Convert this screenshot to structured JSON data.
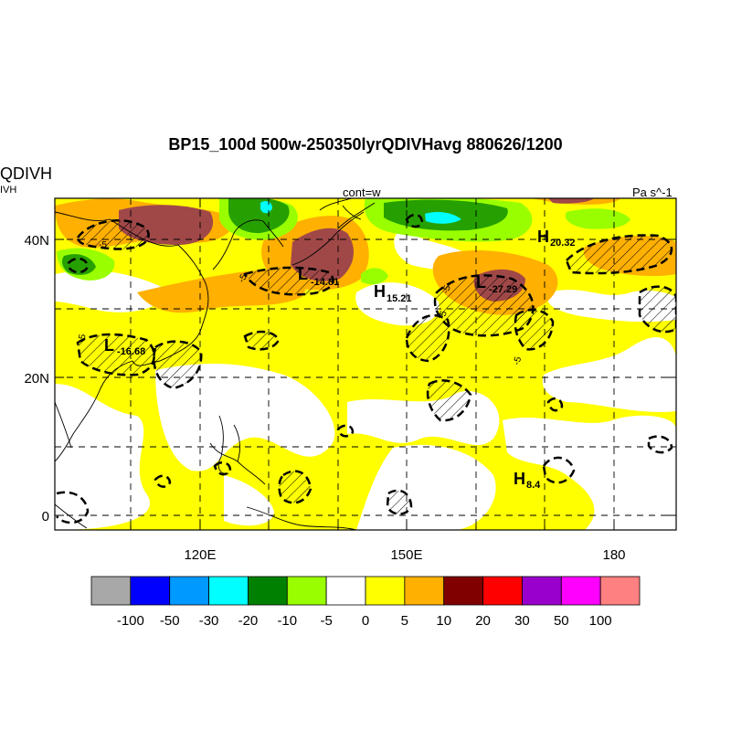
{
  "title": "BP15_100d 500w-250350lyrQDIVHavg  880626/1200",
  "variable": {
    "name": "QDIVH",
    "short": "IVH"
  },
  "annotations": {
    "contour": "cont=w",
    "units": "Pa s^-1"
  },
  "axes": {
    "lat_labels": [
      "40N",
      "20N",
      "0"
    ],
    "lon_labels": [
      "120E",
      "150E",
      "180"
    ]
  },
  "pressure_centers": [
    {
      "type": "L",
      "value": "-16.68"
    },
    {
      "type": "L",
      "value": "-14.81"
    },
    {
      "type": "H",
      "value": "15.21"
    },
    {
      "type": "L",
      "value": "-27.29"
    },
    {
      "type": "H",
      "value": "20.32"
    },
    {
      "type": "H",
      "value": "8.4"
    }
  ],
  "contour_label": "-5",
  "colorbar": {
    "colors": [
      "#a8a8a8",
      "#0000ff",
      "#0099ff",
      "#00ffff",
      "#008000",
      "#99ff00",
      "#ffffff",
      "#ffff00",
      "#ffb000",
      "#800000",
      "#ff0000",
      "#9900cc",
      "#ff00ff",
      "#ff8080"
    ],
    "labels": [
      "-100",
      "-50",
      "-30",
      "-20",
      "-10",
      "-5",
      "0",
      "5",
      "10",
      "20",
      "30",
      "50",
      "100"
    ]
  }
}
